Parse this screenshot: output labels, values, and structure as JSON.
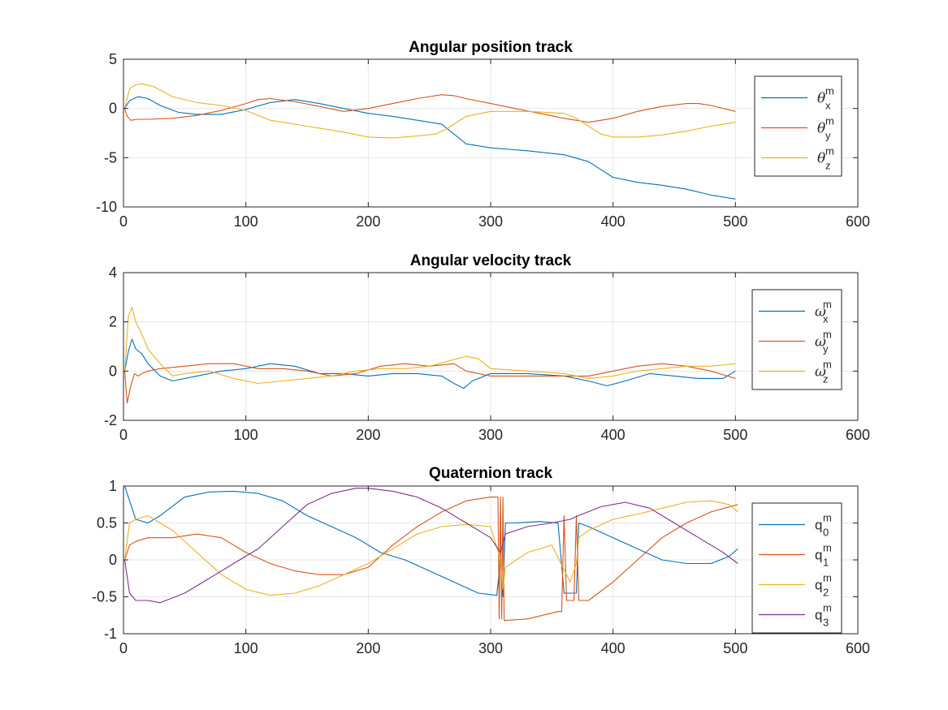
{
  "figure": {
    "background": "#ffffff",
    "axes_color": "#262626",
    "grid_color": "#e6e6e6"
  },
  "series_colors": [
    "#0072bd",
    "#d95319",
    "#edb120",
    "#7e2f8e"
  ],
  "chart_data": [
    {
      "type": "line",
      "title": "Angular position track",
      "xlabel": "",
      "ylabel": "",
      "xlim": [
        0,
        600
      ],
      "ylim": [
        -10,
        5
      ],
      "xticks": [
        "0",
        "100",
        "200",
        "300",
        "400",
        "500",
        "600"
      ],
      "yticks": [
        "-10",
        "-5",
        "0",
        "5"
      ],
      "grid": true,
      "legend_position": "right",
      "series": [
        {
          "name": "θ",
          "sup": "m",
          "sub": "x",
          "color": "#0072bd",
          "x": [
            1,
            5,
            12,
            20,
            30,
            45,
            60,
            80,
            100,
            120,
            140,
            160,
            180,
            200,
            220,
            240,
            260,
            270,
            280,
            300,
            330,
            360,
            380,
            400,
            420,
            440,
            460,
            480,
            500
          ],
          "y": [
            0,
            0.8,
            1.2,
            1.0,
            0.3,
            -0.4,
            -0.6,
            -0.6,
            -0.1,
            0.6,
            0.9,
            0.5,
            0.0,
            -0.5,
            -0.8,
            -1.2,
            -1.6,
            -2.6,
            -3.6,
            -4.0,
            -4.3,
            -4.7,
            -5.4,
            -7.0,
            -7.5,
            -7.8,
            -8.2,
            -8.8,
            -9.2
          ]
        },
        {
          "name": "θ",
          "sup": "m",
          "sub": "y",
          "color": "#d95319",
          "x": [
            1,
            3,
            6,
            12,
            20,
            40,
            60,
            80,
            100,
            110,
            120,
            140,
            160,
            180,
            200,
            220,
            240,
            260,
            270,
            280,
            300,
            320,
            340,
            360,
            380,
            400,
            420,
            440,
            460,
            470,
            480,
            500
          ],
          "y": [
            0,
            -0.8,
            -1.2,
            -1.1,
            -1.1,
            -1.0,
            -0.7,
            -0.2,
            0.5,
            0.9,
            1.0,
            0.7,
            0.2,
            -0.3,
            0.0,
            0.5,
            1.0,
            1.4,
            1.3,
            1.0,
            0.5,
            0.0,
            -0.5,
            -1.0,
            -1.4,
            -1.0,
            -0.3,
            0.2,
            0.5,
            0.5,
            0.3,
            -0.3
          ]
        },
        {
          "name": "θ",
          "sup": "m",
          "sub": "z",
          "color": "#edb120",
          "x": [
            1,
            5,
            10,
            15,
            25,
            40,
            60,
            80,
            100,
            120,
            150,
            180,
            200,
            220,
            240,
            255,
            265,
            280,
            300,
            330,
            360,
            370,
            380,
            390,
            400,
            420,
            440,
            460,
            480,
            500
          ],
          "y": [
            0,
            2.0,
            2.4,
            2.5,
            2.2,
            1.2,
            0.6,
            0.3,
            -0.2,
            -1.2,
            -1.8,
            -2.4,
            -2.9,
            -3.0,
            -2.8,
            -2.6,
            -2.0,
            -0.8,
            -0.3,
            -0.3,
            -0.5,
            -1.0,
            -1.8,
            -2.6,
            -2.9,
            -2.9,
            -2.7,
            -2.3,
            -1.8,
            -1.4
          ]
        }
      ]
    },
    {
      "type": "line",
      "title": "Angular velocity track",
      "xlabel": "",
      "ylabel": "",
      "xlim": [
        0,
        600
      ],
      "ylim": [
        -2,
        4
      ],
      "xticks": [
        "0",
        "100",
        "200",
        "300",
        "400",
        "500",
        "600"
      ],
      "yticks": [
        "-2",
        "0",
        "2",
        "4"
      ],
      "grid": true,
      "legend_position": "right",
      "series": [
        {
          "name": "ω",
          "sup": "m",
          "sub": "x",
          "color": "#0072bd",
          "x": [
            1,
            4,
            7,
            10,
            15,
            20,
            30,
            40,
            60,
            80,
            100,
            120,
            140,
            160,
            180,
            200,
            220,
            240,
            260,
            270,
            278,
            285,
            300,
            330,
            360,
            380,
            395,
            410,
            430,
            450,
            470,
            490,
            500
          ],
          "y": [
            0,
            0.8,
            1.3,
            0.9,
            0.7,
            0.3,
            -0.2,
            -0.4,
            -0.2,
            0.0,
            0.1,
            0.3,
            0.2,
            -0.1,
            -0.1,
            -0.2,
            -0.1,
            -0.1,
            -0.2,
            -0.5,
            -0.7,
            -0.4,
            -0.1,
            -0.1,
            -0.2,
            -0.4,
            -0.6,
            -0.4,
            -0.1,
            -0.2,
            -0.3,
            -0.3,
            0.0
          ]
        },
        {
          "name": "ω",
          "sup": "m",
          "sub": "y",
          "color": "#d95319",
          "x": [
            1,
            3,
            6,
            9,
            12,
            15,
            20,
            30,
            50,
            70,
            90,
            110,
            130,
            150,
            170,
            190,
            210,
            230,
            250,
            270,
            280,
            300,
            330,
            360,
            380,
            400,
            420,
            440,
            460,
            480,
            500
          ],
          "y": [
            0,
            -1.3,
            -0.6,
            -0.1,
            -0.2,
            -0.1,
            0.0,
            0.1,
            0.2,
            0.3,
            0.3,
            0.1,
            0.1,
            0.0,
            -0.2,
            -0.1,
            0.2,
            0.3,
            0.2,
            0.3,
            0.0,
            -0.2,
            -0.2,
            -0.2,
            -0.2,
            0.0,
            0.2,
            0.3,
            0.2,
            0.0,
            -0.3
          ]
        },
        {
          "name": "ω",
          "sup": "m",
          "sub": "z",
          "color": "#edb120",
          "x": [
            1,
            4,
            7,
            10,
            15,
            20,
            30,
            40,
            50,
            70,
            90,
            110,
            130,
            150,
            170,
            190,
            210,
            230,
            250,
            265,
            280,
            290,
            300,
            330,
            360,
            380,
            400,
            420,
            440,
            460,
            480,
            500
          ],
          "y": [
            0,
            2.2,
            2.6,
            2.0,
            1.5,
            0.9,
            0.3,
            -0.2,
            -0.1,
            0.0,
            -0.3,
            -0.5,
            -0.4,
            -0.3,
            -0.2,
            0.0,
            0.1,
            0.1,
            0.2,
            0.4,
            0.6,
            0.5,
            0.1,
            0.0,
            -0.1,
            -0.3,
            -0.2,
            0.0,
            0.1,
            0.2,
            0.2,
            0.3
          ]
        }
      ]
    },
    {
      "type": "line",
      "title": "Quaternion track",
      "xlabel": "",
      "ylabel": "",
      "xlim": [
        0,
        600
      ],
      "ylim": [
        -1,
        1
      ],
      "xticks": [
        "0",
        "100",
        "200",
        "300",
        "400",
        "500",
        "600"
      ],
      "yticks": [
        "-1",
        "-0.5",
        "0",
        "0.5",
        "1"
      ],
      "grid": true,
      "legend_position": "right",
      "series": [
        {
          "name": "q",
          "sup": "m",
          "sub": "0",
          "color": "#0072bd",
          "x": [
            1,
            5,
            10,
            20,
            30,
            50,
            70,
            90,
            110,
            130,
            150,
            170,
            190,
            210,
            230,
            250,
            270,
            290,
            305,
            308,
            310,
            312,
            320,
            340,
            355,
            360,
            365,
            370,
            372,
            380,
            400,
            420,
            440,
            460,
            480,
            495,
            502
          ],
          "y": [
            1.0,
            0.8,
            0.55,
            0.5,
            0.6,
            0.85,
            0.92,
            0.93,
            0.9,
            0.8,
            0.6,
            0.45,
            0.3,
            0.1,
            0.0,
            -0.15,
            -0.3,
            -0.45,
            -0.48,
            0.0,
            -0.5,
            0.5,
            0.5,
            0.52,
            0.5,
            -0.45,
            -0.45,
            -0.45,
            0.5,
            0.45,
            0.3,
            0.15,
            0.0,
            -0.05,
            -0.05,
            0.05,
            0.15
          ]
        },
        {
          "name": "q",
          "sup": "m",
          "sub": "1",
          "color": "#d95319",
          "x": [
            1,
            5,
            10,
            20,
            40,
            60,
            80,
            100,
            120,
            140,
            160,
            180,
            200,
            220,
            240,
            260,
            280,
            300,
            306,
            307,
            308,
            309,
            310,
            311,
            312,
            330,
            355,
            358,
            360,
            362,
            368,
            370,
            372,
            380,
            400,
            420,
            440,
            460,
            480,
            502
          ],
          "y": [
            0,
            0.2,
            0.25,
            0.3,
            0.3,
            0.35,
            0.3,
            0.1,
            -0.05,
            -0.15,
            -0.2,
            -0.2,
            -0.1,
            0.2,
            0.45,
            0.65,
            0.8,
            0.85,
            0.85,
            -0.8,
            0.85,
            -0.8,
            0.85,
            -0.82,
            -0.82,
            -0.8,
            -0.7,
            -0.7,
            0.6,
            -0.55,
            -0.55,
            0.6,
            -0.55,
            -0.55,
            -0.3,
            0.0,
            0.3,
            0.5,
            0.65,
            0.75
          ]
        },
        {
          "name": "q",
          "sup": "m",
          "sub": "2",
          "color": "#edb120",
          "x": [
            1,
            5,
            10,
            20,
            40,
            60,
            80,
            100,
            120,
            140,
            160,
            180,
            200,
            220,
            240,
            260,
            280,
            300,
            308,
            310,
            312,
            330,
            350,
            365,
            370,
            372,
            380,
            400,
            420,
            440,
            460,
            480,
            495,
            502
          ],
          "y": [
            0,
            0.5,
            0.55,
            0.6,
            0.4,
            0.1,
            -0.2,
            -0.4,
            -0.48,
            -0.45,
            -0.35,
            -0.2,
            -0.05,
            0.15,
            0.35,
            0.45,
            0.48,
            0.45,
            0.0,
            -0.4,
            -0.1,
            0.1,
            0.2,
            -0.3,
            -0.05,
            0.3,
            0.4,
            0.55,
            0.62,
            0.7,
            0.78,
            0.8,
            0.75,
            0.65
          ]
        },
        {
          "name": "q",
          "sup": "m",
          "sub": "3",
          "color": "#7e2f8e",
          "x": [
            1,
            5,
            10,
            20,
            30,
            50,
            70,
            90,
            110,
            130,
            150,
            170,
            190,
            200,
            220,
            240,
            260,
            280,
            300,
            308,
            312,
            330,
            350,
            365,
            372,
            390,
            410,
            430,
            450,
            470,
            490,
            502
          ],
          "y": [
            0,
            -0.45,
            -0.55,
            -0.55,
            -0.58,
            -0.45,
            -0.25,
            -0.05,
            0.15,
            0.45,
            0.75,
            0.9,
            0.97,
            0.97,
            0.93,
            0.85,
            0.7,
            0.5,
            0.3,
            0.1,
            0.35,
            0.45,
            0.5,
            0.55,
            0.6,
            0.72,
            0.78,
            0.7,
            0.5,
            0.3,
            0.1,
            -0.05
          ]
        }
      ]
    }
  ]
}
